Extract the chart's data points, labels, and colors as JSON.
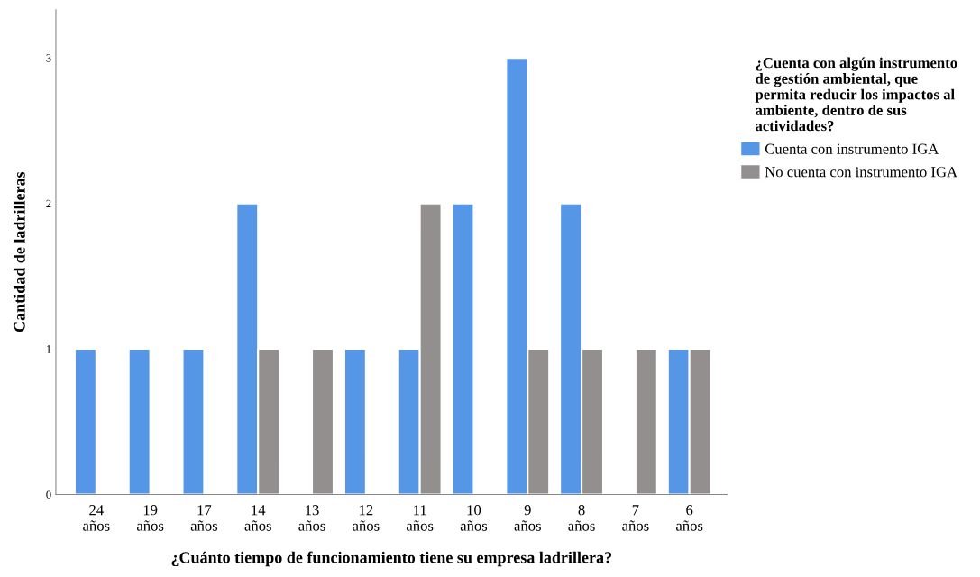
{
  "chart_data": {
    "type": "bar",
    "xlabel": "¿Cuánto tiempo de funcionamiento tiene su empresa ladrillera?",
    "ylabel": "Cantidad de ladrilleras",
    "legend_title": "¿Cuenta con algún instrumento\nde gestión ambiental, que\npermita reducir los impactos al\nambiente, dentro de sus\nactividades?",
    "categories": [
      "24\naños",
      "19\naños",
      "17\naños",
      "14\naños",
      "13\naños",
      "12\naños",
      "11\naños",
      "10\naños",
      "9\naños",
      "8\naños",
      "7\naños",
      "6\naños"
    ],
    "series": [
      {
        "name": "Cuenta con instrumento IGA",
        "color": "#5596e6",
        "values": [
          1,
          1,
          1,
          2,
          null,
          1,
          1,
          2,
          3,
          2,
          null,
          1
        ]
      },
      {
        "name": "No cuenta con instrumento IGA",
        "color": "#938f8e",
        "values": [
          null,
          null,
          null,
          1,
          1,
          null,
          2,
          null,
          1,
          1,
          1,
          1
        ]
      }
    ],
    "ylim": [
      0,
      3.33
    ],
    "yticks": [
      0,
      1,
      2,
      3
    ],
    "grid": false,
    "legend": "top right"
  }
}
